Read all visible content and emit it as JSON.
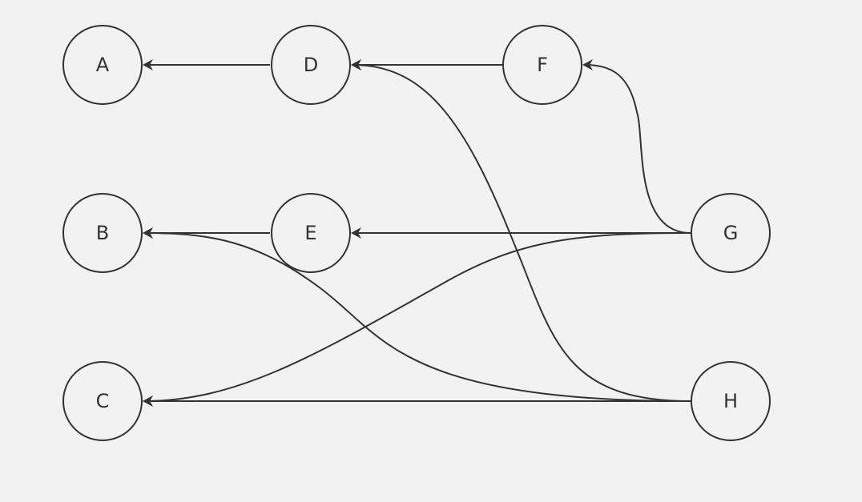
{
  "diagram": {
    "type": "directed-graph",
    "nodes": [
      {
        "id": "A",
        "label": "A"
      },
      {
        "id": "B",
        "label": "B"
      },
      {
        "id": "C",
        "label": "C"
      },
      {
        "id": "D",
        "label": "D"
      },
      {
        "id": "E",
        "label": "E"
      },
      {
        "id": "F",
        "label": "F"
      },
      {
        "id": "G",
        "label": "G"
      },
      {
        "id": "H",
        "label": "H"
      }
    ],
    "edges": [
      {
        "from": "D",
        "to": "A"
      },
      {
        "from": "F",
        "to": "D"
      },
      {
        "from": "H",
        "to": "D"
      },
      {
        "from": "G",
        "to": "F"
      },
      {
        "from": "E",
        "to": "B"
      },
      {
        "from": "G",
        "to": "E"
      },
      {
        "from": "H",
        "to": "B"
      },
      {
        "from": "G",
        "to": "C"
      },
      {
        "from": "H",
        "to": "C"
      }
    ]
  },
  "colors": {
    "background": "#f2f2f2",
    "stroke": "#333333",
    "text": "#333333"
  }
}
